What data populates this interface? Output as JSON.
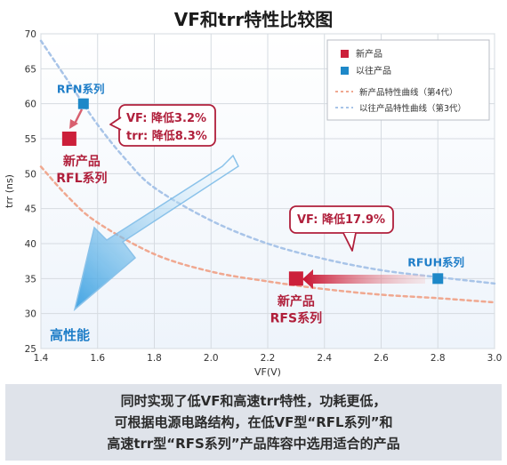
{
  "title": "VF和trr特性比较图",
  "chart_data": {
    "type": "scatter",
    "title": "VF和trr特性比较图",
    "xlabel": "VF(V)",
    "ylabel": "trr (ns)",
    "xlim": [
      1.4,
      3.0
    ],
    "ylim": [
      25,
      70
    ],
    "xticks": [
      "1.4",
      "1.6",
      "1.8",
      "2.0",
      "2.2",
      "2.4",
      "2.6",
      "2.8",
      "3.0"
    ],
    "yticks": [
      "25",
      "30",
      "35",
      "40",
      "45",
      "50",
      "55",
      "60",
      "65",
      "70"
    ],
    "grid": true,
    "legend_position": "top-right",
    "series": [
      {
        "name": "新产品",
        "color": "#cc1f3a",
        "points": [
          {
            "x": 1.5,
            "y": 55,
            "label": "新产品 RFL系列"
          },
          {
            "x": 2.3,
            "y": 35,
            "label": "新产品 RFS系列"
          }
        ]
      },
      {
        "name": "以往产品",
        "color": "#1e88c8",
        "points": [
          {
            "x": 1.55,
            "y": 60,
            "label": "RFN系列"
          },
          {
            "x": 2.8,
            "y": 35,
            "label": "RFUH系列"
          }
        ]
      }
    ],
    "curves": [
      {
        "name": "新产品特性曲线（第4代）",
        "color": "#f0a890",
        "points": [
          [
            1.4,
            51
          ],
          [
            1.5,
            46.5
          ],
          [
            1.6,
            43
          ],
          [
            1.8,
            38.5
          ],
          [
            2.0,
            36
          ],
          [
            2.2,
            34.6
          ],
          [
            2.4,
            33.5
          ],
          [
            2.6,
            32.7
          ],
          [
            2.8,
            32.2
          ],
          [
            3.0,
            31.6
          ]
        ]
      },
      {
        "name": "以往产品特性曲线（第3代）",
        "color": "#a8c4e8",
        "points": [
          [
            1.4,
            69
          ],
          [
            1.5,
            63
          ],
          [
            1.6,
            57
          ],
          [
            1.7,
            52
          ],
          [
            1.8,
            48
          ],
          [
            2.0,
            43.3
          ],
          [
            2.2,
            40
          ],
          [
            2.4,
            37.8
          ],
          [
            2.6,
            36.2
          ],
          [
            2.8,
            35.2
          ],
          [
            3.0,
            34.3
          ]
        ]
      }
    ],
    "annotations": [
      {
        "text_lines": [
          "VF: 降低3.2%",
          "trr: 降低8.3%"
        ]
      },
      {
        "text_lines": [
          "VF: 降低17.9%"
        ]
      },
      {
        "text_lines": [
          "高性能"
        ]
      }
    ]
  },
  "caption": [
    "同时实现了低VF和高速trr特性，功耗更低，",
    "可根据电源电路结构，在低VF型“RFL系列”和",
    "高速trr型“RFS系列”产品阵容中选用适合的产品"
  ]
}
